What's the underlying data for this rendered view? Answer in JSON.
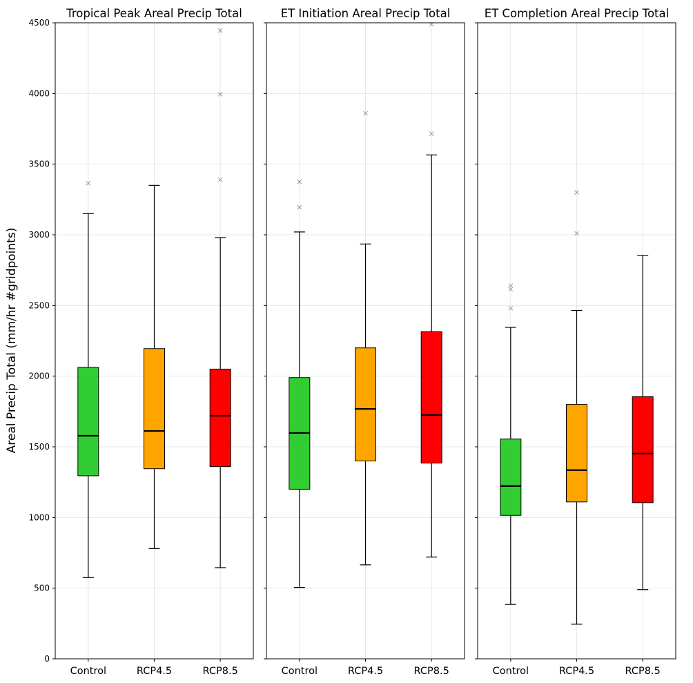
{
  "chart_data": {
    "type": "box",
    "ylabel": "Areal Precip Total (mm/hr #gridpoints)",
    "ylim": [
      0,
      4500
    ],
    "yticks": [
      "0",
      "500",
      "1000",
      "1500",
      "2000",
      "2500",
      "3000",
      "3500",
      "4000",
      "4500"
    ],
    "grid": true,
    "shared_y": true,
    "categories": [
      "Control",
      "RCP4.5",
      "RCP8.5"
    ],
    "colors": {
      "Control": "#32cd32",
      "RCP4.5": "#ffa500",
      "RCP8.5": "#ff0000"
    },
    "panels": [
      {
        "title": "Tropical Peak Areal Precip Total",
        "boxes": [
          {
            "category": "Control",
            "whisker_low": 575,
            "q1": 1295,
            "median": 1578,
            "q3": 2062,
            "whisker_high": 3150,
            "outliers": [
              3365
            ]
          },
          {
            "category": "RCP4.5",
            "whisker_low": 780,
            "q1": 1345,
            "median": 1612,
            "q3": 2195,
            "whisker_high": 3350,
            "outliers": []
          },
          {
            "category": "RCP8.5",
            "whisker_low": 645,
            "q1": 1360,
            "median": 1720,
            "q3": 2050,
            "whisker_high": 2980,
            "outliers": [
              3390,
              3995,
              4445
            ]
          }
        ]
      },
      {
        "title": "ET Initiation Areal Precip Total",
        "boxes": [
          {
            "category": "Control",
            "whisker_low": 505,
            "q1": 1200,
            "median": 1598,
            "q3": 1990,
            "whisker_high": 3020,
            "outliers": [
              3195,
              3375
            ]
          },
          {
            "category": "RCP4.5",
            "whisker_low": 665,
            "q1": 1400,
            "median": 1768,
            "q3": 2200,
            "whisker_high": 2935,
            "outliers": [
              3860
            ]
          },
          {
            "category": "RCP8.5",
            "whisker_low": 720,
            "q1": 1385,
            "median": 1725,
            "q3": 2315,
            "whisker_high": 3565,
            "outliers": [
              3715,
              4490
            ]
          }
        ]
      },
      {
        "title": "ET Completion Areal Precip Total",
        "boxes": [
          {
            "category": "Control",
            "whisker_low": 385,
            "q1": 1015,
            "median": 1222,
            "q3": 1555,
            "whisker_high": 2345,
            "outliers": [
              2480,
              2615,
              2640
            ]
          },
          {
            "category": "RCP4.5",
            "whisker_low": 245,
            "q1": 1110,
            "median": 1335,
            "q3": 1800,
            "whisker_high": 2465,
            "outliers": [
              3010,
              3300
            ]
          },
          {
            "category": "RCP8.5",
            "whisker_low": 490,
            "q1": 1105,
            "median": 1452,
            "q3": 1855,
            "whisker_high": 2855,
            "outliers": []
          }
        ]
      }
    ]
  }
}
